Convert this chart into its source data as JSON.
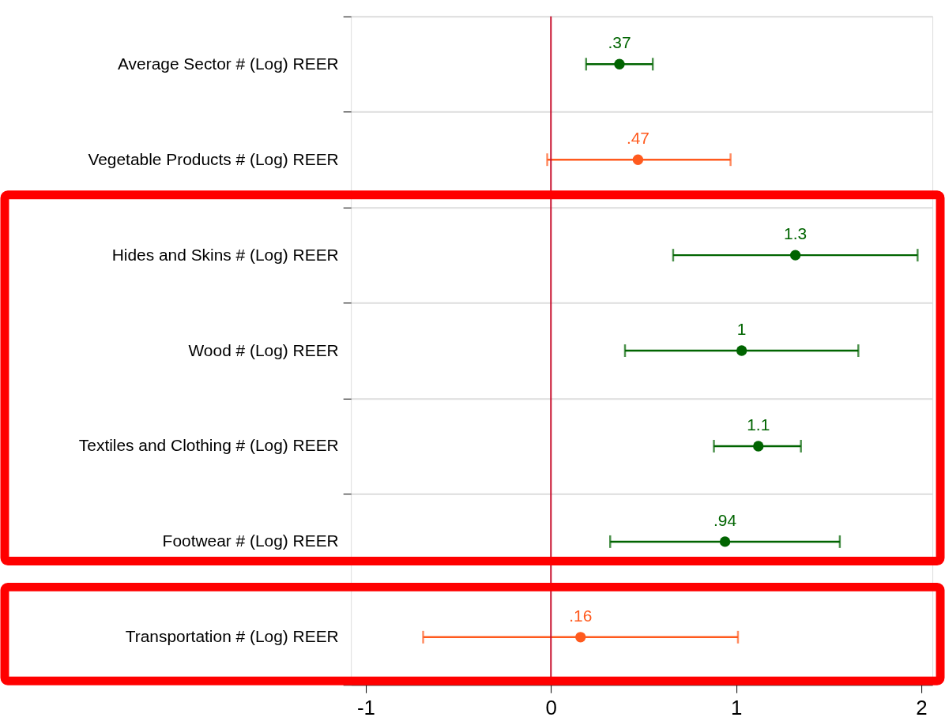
{
  "chart_data": {
    "type": "scatter",
    "categories": [
      "Average Sector # (Log) REER",
      "Vegetable Products # (Log) REER",
      "Hides and Skins # (Log) REER",
      "Wood # (Log) REER",
      "Textiles and Clothing # (Log) REER",
      "Footwear # (Log) REER",
      "Transportation # (Log) REER"
    ],
    "orientation": "horizontal",
    "values": [
      0.37,
      0.47,
      1.32,
      1.03,
      1.12,
      0.94,
      0.16
    ],
    "errors": [
      [
        0.19,
        0.55
      ],
      [
        -0.02,
        0.97
      ],
      [
        0.66,
        1.98
      ],
      [
        0.4,
        1.66
      ],
      [
        0.88,
        1.35
      ],
      [
        0.32,
        1.56
      ],
      [
        -0.69,
        1.01
      ]
    ],
    "value_labels": [
      ".37",
      ".47",
      "1.3",
      "1",
      "1.1",
      ".94",
      ".16"
    ],
    "colors": [
      "#006400",
      "#ff5a1e",
      "#006400",
      "#006400",
      "#006400",
      "#006400",
      "#ff5a1e"
    ],
    "xlim": [
      -1.08,
      2.06
    ],
    "xticks": [
      {
        "value": -1,
        "label": "-1"
      },
      {
        "value": 0,
        "label": "0"
      },
      {
        "value": 1,
        "label": "1"
      },
      {
        "value": 2,
        "label": "2"
      }
    ],
    "ref_lines": [
      {
        "axis": "x",
        "value": 0,
        "color": "#c8102e"
      }
    ],
    "grid": "y",
    "marker": "circle"
  }
}
